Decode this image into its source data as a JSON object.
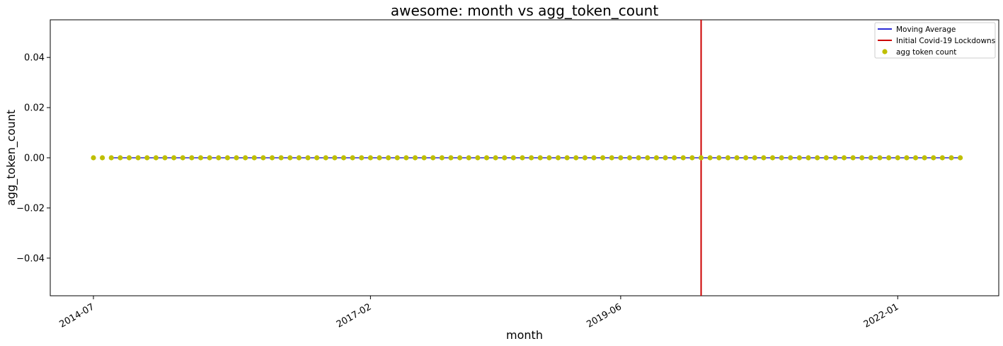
{
  "chart_data": {
    "type": "scatter",
    "title": "awesome: month vs agg_token_count",
    "xlabel": "month",
    "ylabel": "agg_token_count",
    "x_start": "2014-07",
    "x_end": "2022-08",
    "x_ticks": [
      "2014-07",
      "2017-02",
      "2019-06",
      "2022-01"
    ],
    "ylim": [
      -0.055,
      0.055
    ],
    "y_ticks": [
      0.04,
      0.02,
      0.0,
      -0.02,
      -0.04
    ],
    "y_tick_labels": [
      "0.04",
      "0.02",
      "0.00",
      "−0.02",
      "−0.04"
    ],
    "grid": false,
    "legend_position": "top-right",
    "series": [
      {
        "name": "Moving Average",
        "kind": "line",
        "color": "#2b2bd6",
        "start": "2014-09",
        "end": "2022-08",
        "value": 0
      },
      {
        "name": "Initial Covid-19 Lockdowns",
        "kind": "vline",
        "color": "#cc0000",
        "x": "2020-03"
      },
      {
        "name": "agg token count",
        "kind": "scatter",
        "color": "#bfbf00",
        "start": "2014-07",
        "end": "2022-08",
        "value": 0
      }
    ]
  }
}
